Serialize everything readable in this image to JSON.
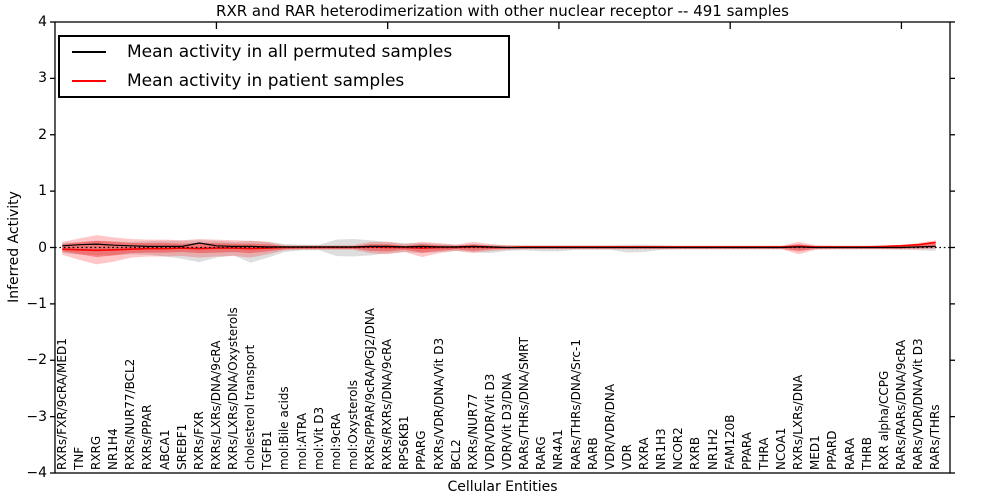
{
  "figure": {
    "title": "RXR and RAR heterodimerization with other nuclear receptor -- 491 samples",
    "xlabel": "Cellular Entities",
    "ylabel": "Inferred Activity"
  },
  "legend": {
    "items": [
      {
        "label": "Mean activity in all permuted samples",
        "color": "#000000"
      },
      {
        "label": "Mean activity in patient samples",
        "color": "#ff0000"
      }
    ]
  },
  "chart_data": {
    "type": "line",
    "title": "RXR and RAR heterodimerization with other nuclear receptor -- 491 samples",
    "xlabel": "Cellular Entities",
    "ylabel": "Inferred Activity",
    "ylim": [
      -4,
      4
    ],
    "yticks": [
      4,
      3,
      2,
      1,
      0,
      -1,
      -2,
      -3,
      -4
    ],
    "grid": false,
    "legend_position": "upper left",
    "zero_line": 0,
    "categories": [
      "RXRs/FXR/9cRA/MED1",
      "TNF",
      "RXRG",
      "NR1H4",
      "RXRs/NUR77/BCL2",
      "RXRs/PPAR",
      "ABCA1",
      "SREBF1",
      "RXRs/FXR",
      "RXRs/LXRs/DNA/9cRA",
      "RXRs/LXRs/DNA/Oxysterols",
      "cholesterol transport",
      "TGFB1",
      "mol:Bile acids",
      "mol:ATRA",
      "mol:Vit D3",
      "mol:9cRA",
      "mol:Oxysterols",
      "RXRs/PPAR/9cRA/PGJ2/DNA",
      "RXRs/RXRs/DNA/9cRA",
      "RPS6KB1",
      "PPARG",
      "RXRs/VDR/DNA/Vit D3",
      "BCL2",
      "RXRs/NUR77",
      "VDR/VDR/Vit D3",
      "VDR/Vit D3/DNA",
      "RARs/THRs/DNA/SMRT",
      "RARG",
      "NR4A1",
      "RARs/THRs/DNA/Src-1",
      "RARB",
      "VDR/VDR/DNA",
      "VDR",
      "RXRA",
      "NR1H3",
      "NCOR2",
      "RXRB",
      "NR1H2",
      "FAM120B",
      "PPARA",
      "THRA",
      "NCOA1",
      "RXRs/LXRs/DNA",
      "MED1",
      "PPARD",
      "RARA",
      "THRB",
      "RXR alpha/CCPG",
      "RARs/RARs/DNA/9cRA",
      "RARs/VDR/DNA/Vit D3",
      "RARs/THRs"
    ],
    "series": [
      {
        "name": "Mean activity in all permuted samples",
        "color": "#000000",
        "width": 1.2,
        "values": [
          0.03,
          0.05,
          0.06,
          0.04,
          0.03,
          0.02,
          0.02,
          0.02,
          0.08,
          0.03,
          0.02,
          0.02,
          0.01,
          0.01,
          0.01,
          0.01,
          0.01,
          0.01,
          0.02,
          0.02,
          0.01,
          0.02,
          0.01,
          0.01,
          0.02,
          0.01,
          0,
          0,
          0,
          0,
          0,
          0,
          0,
          0,
          0,
          0,
          0,
          0,
          0,
          0,
          0,
          0,
          0,
          0.01,
          0,
          0,
          0,
          0,
          0,
          0,
          0.01,
          0.02
        ]
      },
      {
        "name": "Mean activity in patient samples",
        "color": "#ff0000",
        "width": 1.6,
        "values": [
          -0.03,
          -0.04,
          -0.05,
          -0.04,
          -0.03,
          -0.02,
          -0.02,
          -0.01,
          -0.02,
          -0.01,
          -0.01,
          -0.02,
          -0.01,
          0,
          0,
          0,
          0,
          0,
          0.01,
          0,
          0,
          -0.01,
          0,
          0,
          0.01,
          0,
          0,
          0.01,
          0.01,
          0.01,
          0.01,
          0.01,
          0.01,
          0.01,
          0.01,
          0.01,
          0.01,
          0.01,
          0.01,
          0.01,
          0.01,
          0.01,
          0.01,
          0.02,
          0.01,
          0.01,
          0.01,
          0.01,
          0.02,
          0.03,
          0.05,
          0.09
        ]
      }
    ],
    "bands": [
      {
        "name": "permuted-range",
        "color": "rgba(0,0,0,0.13)",
        "hi": [
          0.08,
          0.1,
          0.12,
          0.11,
          0.1,
          0.11,
          0.12,
          0.12,
          0.13,
          0.12,
          0.1,
          0.12,
          0.1,
          0.06,
          0.05,
          0.05,
          0.14,
          0.15,
          0.13,
          0.1,
          0.08,
          0.08,
          0.06,
          0.05,
          0.05,
          0.05,
          0.04,
          0.04,
          0.04,
          0.04,
          0.04,
          0.04,
          0.04,
          0.05,
          0.05,
          0.04,
          0.03,
          0.03,
          0.03,
          0.03,
          0.03,
          0.03,
          0.03,
          0.05,
          0.03,
          0.03,
          0.03,
          0.03,
          0.03,
          0.04,
          0.05,
          0.06
        ],
        "lo": [
          -0.1,
          -0.12,
          -0.14,
          -0.14,
          -0.12,
          -0.13,
          -0.16,
          -0.2,
          -0.26,
          -0.18,
          -0.14,
          -0.27,
          -0.18,
          -0.08,
          -0.05,
          -0.05,
          -0.15,
          -0.16,
          -0.14,
          -0.1,
          -0.08,
          -0.1,
          -0.08,
          -0.06,
          -0.08,
          -0.1,
          -0.06,
          -0.05,
          -0.07,
          -0.07,
          -0.04,
          -0.04,
          -0.04,
          -0.09,
          -0.08,
          -0.04,
          -0.03,
          -0.03,
          -0.03,
          -0.03,
          -0.03,
          -0.03,
          -0.03,
          -0.05,
          -0.03,
          -0.03,
          -0.03,
          -0.03,
          -0.03,
          -0.04,
          -0.05,
          -0.06
        ]
      },
      {
        "name": "patient-range-outer",
        "color": "rgba(255,0,0,0.22)",
        "hi": [
          0.1,
          0.16,
          0.22,
          0.18,
          0.15,
          0.14,
          0.14,
          0.13,
          0.15,
          0.14,
          0.13,
          0.12,
          0.1,
          0.04,
          0.04,
          0.04,
          0.04,
          0.04,
          0.1,
          0.1,
          0.06,
          0.1,
          0.08,
          0.05,
          0.1,
          0.06,
          0.04,
          0.03,
          0.03,
          0.03,
          0.03,
          0.03,
          0.03,
          0.03,
          0.03,
          0.03,
          0.03,
          0.03,
          0.03,
          0.03,
          0.03,
          0.03,
          0.03,
          0.1,
          0.04,
          0.03,
          0.03,
          0.03,
          0.03,
          0.05,
          0.08,
          0.13
        ],
        "lo": [
          -0.13,
          -0.22,
          -0.3,
          -0.25,
          -0.18,
          -0.16,
          -0.16,
          -0.15,
          -0.18,
          -0.16,
          -0.15,
          -0.18,
          -0.12,
          -0.05,
          -0.04,
          -0.04,
          -0.04,
          -0.04,
          -0.1,
          -0.12,
          -0.08,
          -0.17,
          -0.1,
          -0.06,
          -0.1,
          -0.06,
          -0.04,
          -0.03,
          -0.03,
          -0.03,
          -0.03,
          -0.03,
          -0.03,
          -0.03,
          -0.03,
          -0.03,
          -0.03,
          -0.03,
          -0.03,
          -0.03,
          -0.03,
          -0.03,
          -0.03,
          -0.12,
          -0.04,
          -0.03,
          -0.03,
          -0.03,
          -0.03,
          -0.03,
          -0.03,
          -0.02
        ]
      },
      {
        "name": "patient-range-inner",
        "color": "rgba(255,0,0,0.33)",
        "hi": [
          0.06,
          0.09,
          0.12,
          0.1,
          0.08,
          0.08,
          0.08,
          0.07,
          0.08,
          0.08,
          0.07,
          0.07,
          0.06,
          0.02,
          0.02,
          0.02,
          0.02,
          0.02,
          0.06,
          0.06,
          0.03,
          0.06,
          0.04,
          0.03,
          0.06,
          0.03,
          0.02,
          0.02,
          0.02,
          0.02,
          0.02,
          0.02,
          0.02,
          0.02,
          0.02,
          0.02,
          0.02,
          0.02,
          0.02,
          0.02,
          0.02,
          0.02,
          0.02,
          0.06,
          0.02,
          0.02,
          0.02,
          0.02,
          0.02,
          0.03,
          0.05,
          0.1
        ],
        "lo": [
          -0.07,
          -0.12,
          -0.17,
          -0.14,
          -0.1,
          -0.09,
          -0.09,
          -0.08,
          -0.1,
          -0.09,
          -0.08,
          -0.1,
          -0.07,
          -0.03,
          -0.02,
          -0.02,
          -0.02,
          -0.02,
          -0.06,
          -0.07,
          -0.04,
          -0.09,
          -0.06,
          -0.03,
          -0.06,
          -0.03,
          -0.02,
          -0.02,
          -0.02,
          -0.02,
          -0.02,
          -0.02,
          -0.02,
          -0.02,
          -0.02,
          -0.02,
          -0.02,
          -0.02,
          -0.02,
          -0.02,
          -0.02,
          -0.02,
          -0.02,
          -0.07,
          -0.02,
          -0.02,
          -0.02,
          -0.02,
          -0.02,
          -0.02,
          -0.01,
          0.0
        ]
      }
    ]
  }
}
